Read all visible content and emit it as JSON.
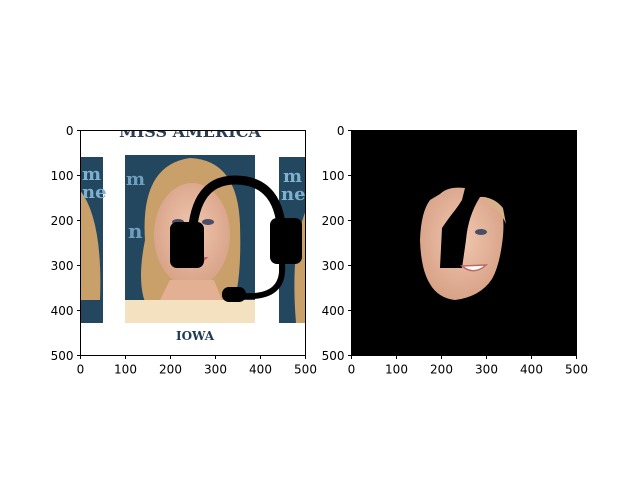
{
  "figure": {
    "background": "#ffffff"
  },
  "chart_data": [
    {
      "type": "image",
      "panel": "left",
      "content": "portrait photo with headset overlay",
      "xlim": [
        0,
        500
      ],
      "ylim": [
        500,
        0
      ],
      "xticks": [
        0,
        100,
        200,
        300,
        400,
        500
      ],
      "yticks": [
        0,
        100,
        200,
        300,
        400,
        500
      ],
      "photo_text": {
        "banner": "MISS AMERICA",
        "sash": "IOWA",
        "logo_letters": [
          "m",
          "ne",
          "m",
          "n",
          "m",
          "ne"
        ]
      },
      "colors": {
        "backdrop": "#23475f",
        "frame": "#ffffff",
        "skin": "#e6b59b",
        "hair": "#c9a06a",
        "overlay": "#000000"
      }
    },
    {
      "type": "image",
      "panel": "right",
      "content": "segmented face mask on black background",
      "xlim": [
        0,
        500
      ],
      "ylim": [
        500,
        0
      ],
      "xticks": [
        0,
        100,
        200,
        300,
        400,
        500
      ],
      "yticks": [
        0,
        100,
        200,
        300,
        400,
        500
      ],
      "colors": {
        "background": "#000000",
        "skin": "#e7b79e"
      }
    }
  ]
}
